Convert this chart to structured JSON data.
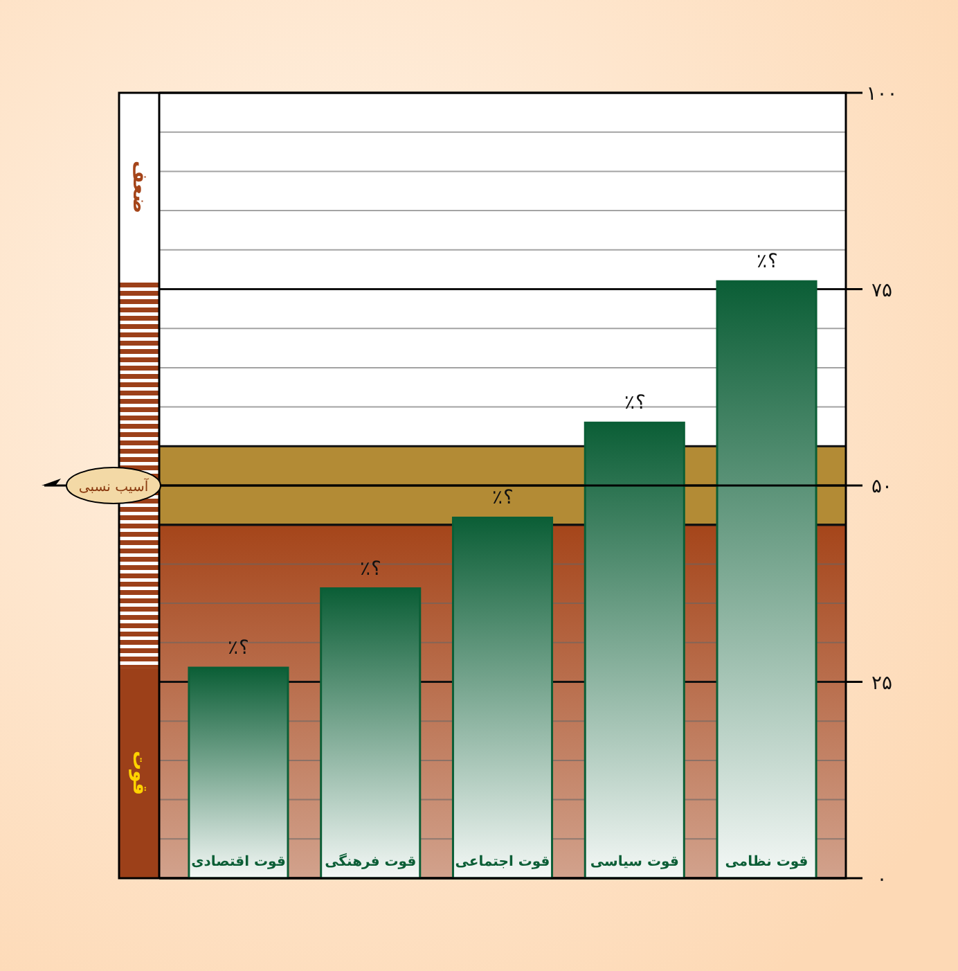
{
  "chart_data": {
    "type": "bar",
    "categories": [
      "قوت اقتصادی",
      "قوت فرهنگی",
      "قوت اجتماعی",
      "قوت سیاسی",
      "قوت نظامی"
    ],
    "values": [
      26.8,
      36.9,
      45.9,
      58.0,
      76.0
    ],
    "color": "#0b5e36",
    "value_labels": [
      "؟٪",
      "؟٪",
      "؟٪",
      "؟٪",
      "؟٪"
    ],
    "ylim": [
      0,
      100
    ],
    "yticks": [
      {
        "value": 0,
        "label": "۰"
      },
      {
        "value": 5,
        "label": null
      },
      {
        "value": 10,
        "label": null
      },
      {
        "value": 15,
        "label": null
      },
      {
        "value": 20,
        "label": null
      },
      {
        "value": 25,
        "label": "۲۵"
      },
      {
        "value": 30,
        "label": null
      },
      {
        "value": 35,
        "label": null
      },
      {
        "value": 40,
        "label": null
      },
      {
        "value": 45,
        "label": null
      },
      {
        "value": 50,
        "label": "۵۰"
      },
      {
        "value": 55,
        "label": null
      },
      {
        "value": 60,
        "label": null
      },
      {
        "value": 65,
        "label": null
      },
      {
        "value": 70,
        "label": null
      },
      {
        "value": 75,
        "label": "۷۵"
      },
      {
        "value": 80,
        "label": null
      },
      {
        "value": 85,
        "label": null
      },
      {
        "value": 90,
        "label": null
      },
      {
        "value": 95,
        "label": null
      },
      {
        "value": 100,
        "label": "۱۰۰"
      }
    ],
    "grid": "y",
    "bands": [
      {
        "axis": "y",
        "from": 0,
        "to": 45,
        "color": "#a5451a"
      },
      {
        "axis": "y",
        "from": 45,
        "to": 55,
        "color": "#b38b35"
      }
    ],
    "ref_lines": [
      {
        "axis": "y",
        "value": 50,
        "label": "آسیب نسبی",
        "color": "#000000"
      }
    ],
    "annotations": [
      "ضعف",
      "قوت"
    ]
  }
}
